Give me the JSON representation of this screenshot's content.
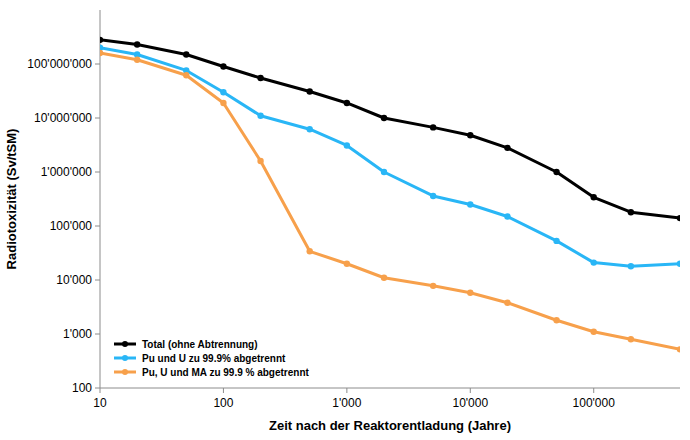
{
  "chart_data": {
    "type": "line",
    "x_label": "Zeit nach der Reaktorentladung (Jahre)",
    "y_label": "Radiotoxizität (Sv/tSM)",
    "log": true,
    "grid": false,
    "legend": "bottom-left",
    "marker": "circle",
    "x": [
      10,
      20,
      50,
      100,
      200,
      500,
      1000,
      2000,
      5000,
      10000,
      20000,
      50000,
      100000,
      200000,
      500000
    ],
    "xlim": [
      10,
      500000
    ],
    "xticks": [
      10,
      100,
      {
        "value": 1000,
        "label": "1'000"
      },
      {
        "value": 10000,
        "label": "10'000"
      },
      {
        "value": 100000,
        "label": "100'000"
      }
    ],
    "ylim": [
      100,
      1000000000
    ],
    "yticks": [
      100,
      {
        "value": 1000,
        "label": "1'000"
      },
      {
        "value": 10000,
        "label": "10'000"
      },
      {
        "value": 100000,
        "label": "100'000"
      },
      {
        "value": 1000000,
        "label": "1'000'000"
      },
      {
        "value": 10000000,
        "label": "10'000'000"
      },
      {
        "value": 100000000,
        "label": "100'000'000"
      }
    ],
    "series": [
      {
        "name": "Total (ohne Abtrennung)",
        "color": "#000000",
        "values": [
          280000000,
          230000000,
          150000000,
          90000000,
          55000000,
          31000000,
          19000000,
          10000000,
          6700000,
          4800000,
          2800000,
          1000000,
          340000,
          180000,
          140000
        ]
      },
      {
        "name": "Pu und U zu 99.9% abgetrennt",
        "color": "#29b6f6",
        "values": [
          200000000,
          150000000,
          76000000,
          30000000,
          11000000,
          6200000,
          3100000,
          1000000,
          360000,
          250000,
          150000,
          53000,
          21000,
          18000,
          20000
        ]
      },
      {
        "name": "Pu, U und MA zu 99.9 % abgetrennt",
        "color": "#f7a04b",
        "values": [
          160000000,
          120000000,
          62000000,
          19000000,
          1600000,
          34000,
          20000,
          11000,
          7800,
          5800,
          3800,
          1800,
          1100,
          800,
          520
        ]
      }
    ]
  }
}
